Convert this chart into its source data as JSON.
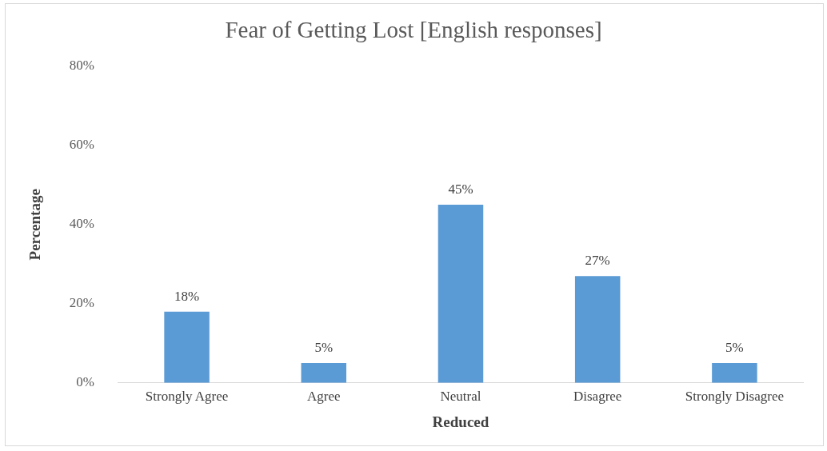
{
  "chart_data": {
    "type": "bar",
    "title": "Fear of Getting Lost [English responses]",
    "xlabel": "Reduced",
    "ylabel": "Percentage",
    "categories": [
      "Strongly Agree",
      "Agree",
      "Neutral",
      "Disagree",
      "Strongly Disagree"
    ],
    "values": [
      18,
      5,
      45,
      27,
      5
    ],
    "value_labels": [
      "18%",
      "5%",
      "45%",
      "27%",
      "5%"
    ],
    "color": "#5b9bd5",
    "ylim": [
      0,
      80
    ],
    "yticks": [
      {
        "value": 0,
        "label": "0%"
      },
      {
        "value": 20,
        "label": "20%"
      },
      {
        "value": 40,
        "label": "40%"
      },
      {
        "value": 60,
        "label": "60%"
      },
      {
        "value": 80,
        "label": "80%"
      }
    ],
    "grid": false,
    "legend": false
  }
}
